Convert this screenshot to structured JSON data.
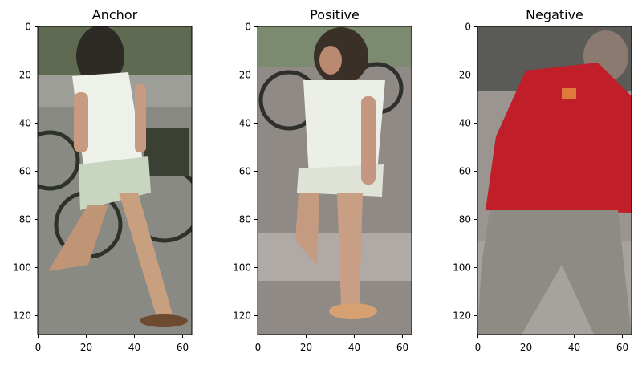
{
  "chart_data": [
    {
      "type": "image",
      "title": "Anchor",
      "image": "person-walking-white-top-green-shorts",
      "xlim": [
        0,
        64
      ],
      "ylim": [
        128,
        0
      ],
      "xticks": [
        "0",
        "20",
        "40",
        "60"
      ],
      "xtick_values": [
        0,
        20,
        40,
        60
      ],
      "yticks": [
        "0",
        "20",
        "40",
        "60",
        "80",
        "100",
        "120"
      ],
      "ytick_values": [
        0,
        20,
        40,
        60,
        80,
        100,
        120
      ]
    },
    {
      "type": "image",
      "title": "Positive",
      "image": "person-walking-white-top-light-shorts",
      "xlim": [
        0,
        64
      ],
      "ylim": [
        128,
        0
      ],
      "xticks": [
        "0",
        "20",
        "40",
        "60"
      ],
      "xtick_values": [
        0,
        20,
        40,
        60
      ],
      "yticks": [
        "0",
        "20",
        "40",
        "60",
        "80",
        "100",
        "120"
      ],
      "ytick_values": [
        0,
        20,
        40,
        60,
        80,
        100,
        120
      ]
    },
    {
      "type": "image",
      "title": "Negative",
      "image": "person-walking-red-jacket-grey-trousers",
      "xlim": [
        0,
        64
      ],
      "ylim": [
        128,
        0
      ],
      "xticks": [
        "0",
        "20",
        "40",
        "60"
      ],
      "xtick_values": [
        0,
        20,
        40,
        60
      ],
      "yticks": [
        "0",
        "20",
        "40",
        "60",
        "80",
        "100",
        "120"
      ],
      "ytick_values": [
        0,
        20,
        40,
        60,
        80,
        100,
        120
      ]
    }
  ]
}
